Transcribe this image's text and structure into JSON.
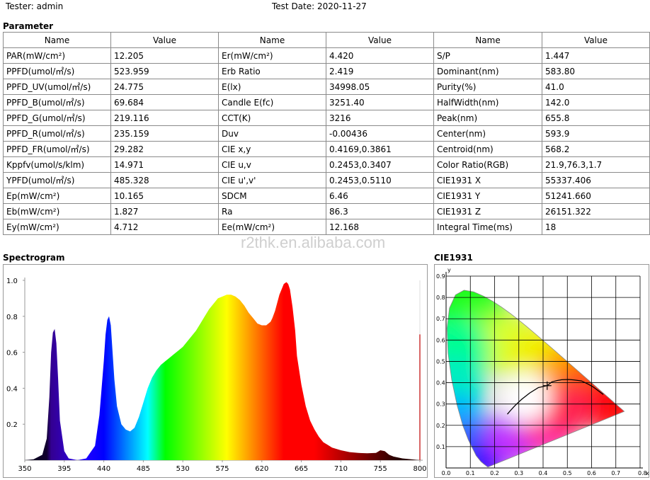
{
  "header": {
    "tester": "Tester: admin",
    "test_date": "Test Date: 2020-11-27"
  },
  "parameter_title": "Parameter",
  "columns": [
    "Name",
    "Value",
    "Name",
    "Value",
    "Name",
    "Value"
  ],
  "rows": [
    [
      "PAR(mW/cm²)",
      "12.205",
      "Er(mW/cm²)",
      "4.420",
      "S/P",
      "1.447"
    ],
    [
      "PPFD(umol/㎡/s)",
      "523.959",
      "Erb Ratio",
      "2.419",
      "Dominant(nm)",
      "583.80"
    ],
    [
      "PPFD_UV(umol/㎡/s)",
      "24.775",
      "E(lx)",
      "34998.05",
      "Purity(%)",
      "41.0"
    ],
    [
      "PPFD_B(umol/㎡/s)",
      "69.684",
      "Candle E(fc)",
      "3251.40",
      "HalfWidth(nm)",
      "142.0"
    ],
    [
      "PPFD_G(umol/㎡/s)",
      "219.116",
      "CCT(K)",
      "3216",
      "Peak(nm)",
      "655.8"
    ],
    [
      "PPFD_R(umol/㎡/s)",
      "235.159",
      "Duv",
      "-0.00436",
      "Center(nm)",
      "593.9"
    ],
    [
      "PPFD_FR(umol/㎡/s)",
      "29.282",
      "CIE x,y",
      "0.4169,0.3861",
      "Centroid(nm)",
      "568.2"
    ],
    [
      "Kppfv(umol/s/klm)",
      "14.971",
      "CIE u,v",
      "0.2453,0.3407",
      "Color Ratio(RGB)",
      "21.9,76.3,1.7"
    ],
    [
      "YPFD(umol/㎡/s)",
      "485.328",
      "CIE u',v'",
      "0.2453,0.5110",
      "CIE1931 X",
      "55337.406"
    ],
    [
      "Ep(mW/cm²)",
      "10.165",
      "SDCM",
      "6.46",
      "CIE1931 Y",
      "51241.660"
    ],
    [
      "Eb(mW/cm²)",
      "1.827",
      "Ra",
      "86.3",
      "CIE1931 Z",
      "26151.322"
    ],
    [
      "Ey(mW/cm²)",
      "4.712",
      "Ee(mW/cm²)",
      "12.168",
      "Integral Time(ms)",
      "18"
    ]
  ],
  "watermark": "r2thk.en.alibaba.com",
  "spectrogram_title": "Spectrogram",
  "cie_title": "CIE1931",
  "chart_data": [
    {
      "type": "area",
      "title": "Spectrogram",
      "xlim": [
        350,
        800
      ],
      "ylim": [
        0,
        1.0
      ],
      "x_ticks": [
        350,
        395,
        440,
        485,
        530,
        575,
        620,
        665,
        710,
        755,
        800
      ],
      "y_ticks": [
        0.2,
        0.4,
        0.6,
        0.8,
        1.0
      ],
      "x": [
        350,
        360,
        370,
        375,
        378,
        380,
        382,
        384,
        386,
        388,
        390,
        395,
        400,
        410,
        420,
        430,
        435,
        440,
        442,
        444,
        446,
        448,
        450,
        452,
        455,
        460,
        465,
        470,
        475,
        480,
        485,
        490,
        495,
        500,
        505,
        510,
        515,
        520,
        525,
        530,
        535,
        540,
        545,
        550,
        555,
        560,
        565,
        570,
        575,
        580,
        585,
        590,
        595,
        600,
        605,
        610,
        615,
        620,
        625,
        630,
        632,
        635,
        640,
        645,
        648,
        650,
        652,
        655,
        658,
        660,
        665,
        670,
        675,
        680,
        685,
        690,
        695,
        700,
        710,
        720,
        730,
        740,
        750,
        755,
        760,
        765,
        770,
        780,
        790,
        800
      ],
      "y": [
        0.0,
        0.005,
        0.03,
        0.12,
        0.35,
        0.6,
        0.71,
        0.73,
        0.65,
        0.45,
        0.22,
        0.05,
        0.01,
        0.0,
        0.01,
        0.08,
        0.25,
        0.55,
        0.7,
        0.78,
        0.8,
        0.75,
        0.6,
        0.45,
        0.3,
        0.2,
        0.17,
        0.16,
        0.18,
        0.24,
        0.32,
        0.4,
        0.46,
        0.5,
        0.53,
        0.55,
        0.57,
        0.59,
        0.61,
        0.63,
        0.66,
        0.69,
        0.72,
        0.76,
        0.8,
        0.84,
        0.87,
        0.9,
        0.91,
        0.92,
        0.92,
        0.91,
        0.89,
        0.86,
        0.82,
        0.79,
        0.76,
        0.75,
        0.75,
        0.77,
        0.79,
        0.83,
        0.92,
        0.98,
        0.99,
        0.98,
        0.95,
        0.85,
        0.72,
        0.58,
        0.42,
        0.3,
        0.22,
        0.17,
        0.13,
        0.1,
        0.085,
        0.07,
        0.055,
        0.045,
        0.04,
        0.038,
        0.04,
        0.055,
        0.05,
        0.03,
        0.02,
        0.01,
        0.005,
        0.0
      ]
    },
    {
      "type": "scatter",
      "title": "CIE1931",
      "xlabel": "x",
      "ylabel": "y",
      "xlim": [
        0,
        0.8
      ],
      "ylim": [
        0,
        0.9
      ],
      "x_ticks": [
        0.0,
        0.1,
        0.2,
        0.3,
        0.4,
        0.5,
        0.6,
        0.7
      ],
      "y_ticks": [
        0.1,
        0.2,
        0.3,
        0.4,
        0.5,
        0.6,
        0.7,
        0.8,
        0.9
      ],
      "measured_point": [
        0.4169,
        0.3861
      ],
      "locus": [
        [
          0.1741,
          0.005
        ],
        [
          0.1738,
          0.0049
        ],
        [
          0.1733,
          0.0048
        ],
        [
          0.1726,
          0.0048
        ],
        [
          0.1714,
          0.0051
        ],
        [
          0.1689,
          0.0069
        ],
        [
          0.1644,
          0.0109
        ],
        [
          0.1566,
          0.0177
        ],
        [
          0.144,
          0.0297
        ],
        [
          0.1241,
          0.0578
        ],
        [
          0.0913,
          0.1327
        ],
        [
          0.0687,
          0.2007
        ],
        [
          0.0454,
          0.295
        ],
        [
          0.0235,
          0.4127
        ],
        [
          0.0082,
          0.5384
        ],
        [
          0.0039,
          0.6548
        ],
        [
          0.0139,
          0.7502
        ],
        [
          0.0389,
          0.812
        ],
        [
          0.0743,
          0.8338
        ],
        [
          0.1142,
          0.8262
        ],
        [
          0.1547,
          0.8059
        ],
        [
          0.1929,
          0.7816
        ],
        [
          0.2296,
          0.7543
        ],
        [
          0.2658,
          0.7243
        ],
        [
          0.3016,
          0.6923
        ],
        [
          0.3373,
          0.6589
        ],
        [
          0.3731,
          0.6245
        ],
        [
          0.4087,
          0.5896
        ],
        [
          0.4441,
          0.5547
        ],
        [
          0.4788,
          0.5202
        ],
        [
          0.5125,
          0.4866
        ],
        [
          0.5448,
          0.4544
        ],
        [
          0.5752,
          0.4242
        ],
        [
          0.6029,
          0.3965
        ],
        [
          0.627,
          0.3725
        ],
        [
          0.6482,
          0.3514
        ],
        [
          0.6658,
          0.334
        ],
        [
          0.6801,
          0.3197
        ],
        [
          0.6915,
          0.3083
        ],
        [
          0.7006,
          0.2993
        ],
        [
          0.7079,
          0.292
        ],
        [
          0.714,
          0.2859
        ],
        [
          0.719,
          0.2809
        ],
        [
          0.723,
          0.277
        ],
        [
          0.726,
          0.274
        ],
        [
          0.7283,
          0.2717
        ],
        [
          0.7347,
          0.2653
        ]
      ],
      "planckian": [
        [
          0.2526,
          0.2522
        ],
        [
          0.264,
          0.2674
        ],
        [
          0.2806,
          0.2883
        ],
        [
          0.2952,
          0.3048
        ],
        [
          0.3135,
          0.3237
        ],
        [
          0.3447,
          0.3516
        ],
        [
          0.3805,
          0.3768
        ],
        [
          0.4169,
          0.3861
        ],
        [
          0.4369,
          0.4041
        ],
        [
          0.4599,
          0.4106
        ],
        [
          0.4764,
          0.4137
        ],
        [
          0.5056,
          0.4152
        ],
        [
          0.5267,
          0.4133
        ],
        [
          0.5586,
          0.4082
        ],
        [
          0.5857,
          0.3931
        ],
        [
          0.6065,
          0.3802
        ],
        [
          0.6482,
          0.3447
        ]
      ]
    }
  ]
}
